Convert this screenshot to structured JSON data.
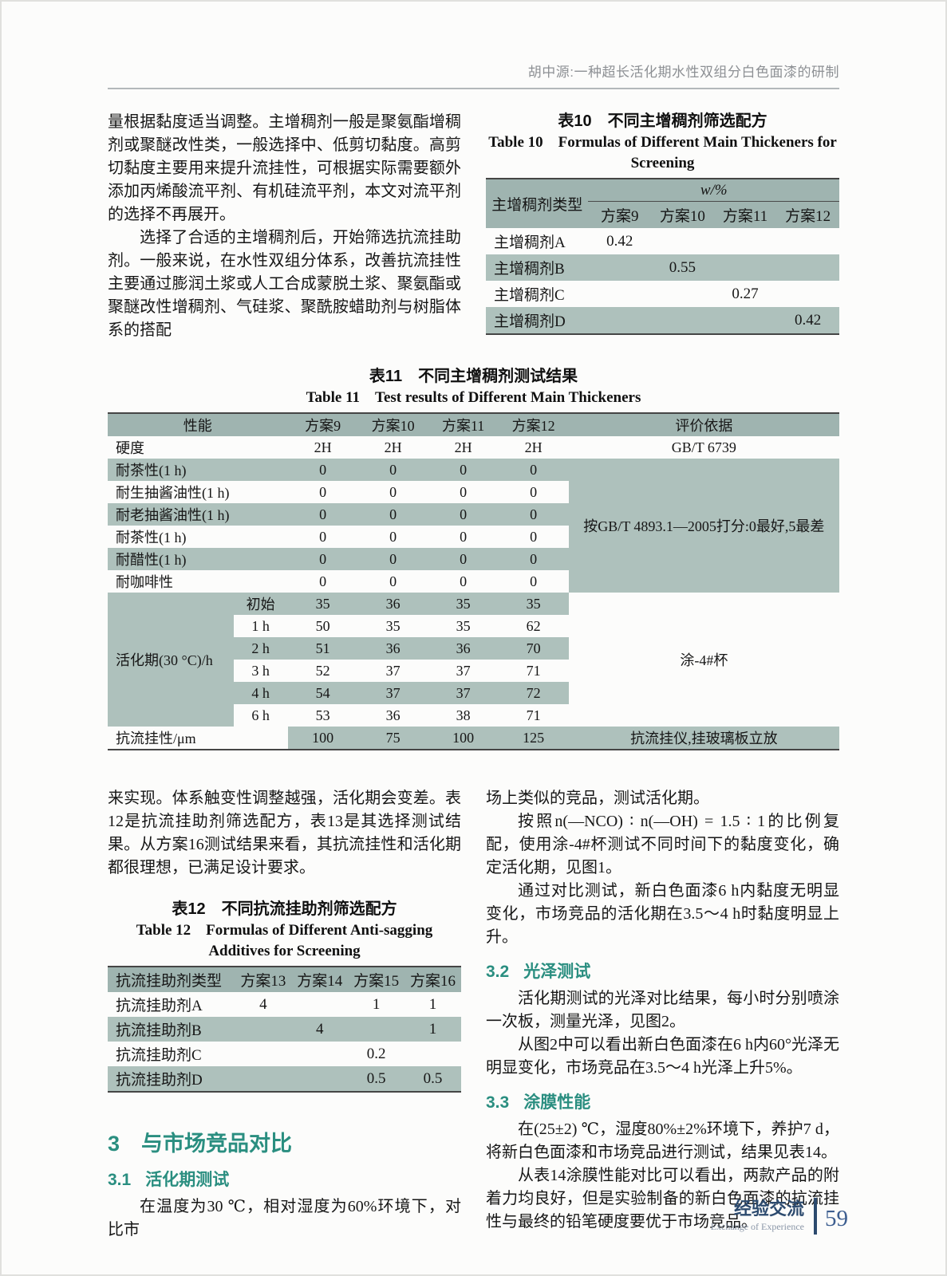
{
  "running_head": "胡中源:一种超长活化期水性双组分白色面漆的研制",
  "colors": {
    "accent_teal": "#2a8e80",
    "table_header_teal": "#9fb4b0",
    "table_band_teal": "#aec1bc",
    "footer_navy": "#2c4a6e",
    "page_number_blue": "#3d5e90",
    "running_head_gray": "#8d9094"
  },
  "top_left": {
    "p1": "量根据黏度适当调整。主增稠剂一般是聚氨酯增稠剂或聚醚改性类，一般选择中、低剪切黏度。高剪切黏度主要用来提升流挂性，可根据实际需要额外添加丙烯酸流平剂、有机硅流平剂，本文对流平剂的选择不再展开。",
    "p2": "选择了合适的主增稠剂后，开始筛选抗流挂助剂。一般来说，在水性双组分体系，改善抗流挂性主要通过膨润土浆或人工合成蒙脱土浆、聚氨酯或聚醚改性增稠剂、气硅浆、聚酰胺蜡助剂与树脂体系的搭配"
  },
  "tables": {
    "table10": {
      "title_zh": "表10　不同主增稠剂筛选配方",
      "title_en": "Table 10　Formulas of Different Main Thickeners for Screening",
      "widths": [
        "29%",
        "17.75%",
        "17.75%",
        "17.75%",
        "17.75%"
      ],
      "grid": [
        {
          "bg": "h",
          "c": [
            {
              "t": "主增稠剂类型",
              "rs": 2
            },
            {
              "t": "w/%",
              "cs": 4,
              "cls": "sp"
            }
          ]
        },
        {
          "bg": "h",
          "c": [
            {
              "t": "方案9"
            },
            {
              "t": "方案10"
            },
            {
              "t": "方案11"
            },
            {
              "t": "方案12"
            }
          ]
        },
        {
          "c": [
            {
              "t": "主增稠剂A",
              "al": "l"
            },
            {
              "t": "0.42"
            },
            {},
            {},
            {}
          ]
        },
        {
          "bg": "t",
          "c": [
            {
              "t": "主增稠剂B",
              "al": "l"
            },
            {},
            {
              "t": "0.55"
            },
            {},
            {}
          ]
        },
        {
          "c": [
            {
              "t": "主增稠剂C",
              "al": "l"
            },
            {},
            {},
            {
              "t": "0.27"
            },
            {}
          ]
        },
        {
          "bg": "t",
          "c": [
            {
              "t": "主增稠剂D",
              "al": "l"
            },
            {},
            {},
            {},
            {
              "t": "0.42"
            }
          ]
        }
      ]
    },
    "table11": {
      "title_zh": "表11　不同主增稠剂测试结果",
      "title_en": "Table 11　Test results of Different Main Thickeners",
      "widths": [
        "17.2%",
        "7.4%",
        "9.6%",
        "9.6%",
        "9.6%",
        "9.6%",
        "37%"
      ],
      "grid": [
        {
          "bg": "h",
          "c": [
            {
              "t": "性能",
              "cs": 2
            },
            {
              "t": "方案9"
            },
            {
              "t": "方案10"
            },
            {
              "t": "方案11"
            },
            {
              "t": "方案12"
            },
            {
              "t": "评价依据"
            }
          ]
        },
        {
          "c": [
            {
              "t": "硬度",
              "cs": 2,
              "al": "l"
            },
            {
              "t": "2H"
            },
            {
              "t": "2H"
            },
            {
              "t": "2H"
            },
            {
              "t": "2H"
            },
            {
              "t": "GB/T 6739"
            }
          ]
        },
        {
          "bg": "t",
          "c": [
            {
              "t": "耐茶性(1 h)",
              "cs": 2,
              "al": "l"
            },
            {
              "t": "0"
            },
            {
              "t": "0"
            },
            {
              "t": "0"
            },
            {
              "t": "0"
            },
            {
              "t": "按GB/T 4893.1—2005打分:0最好,5最差",
              "rs": 6,
              "bg": "t",
              "cls": "sm"
            }
          ]
        },
        {
          "c": [
            {
              "t": "耐生抽酱油性(1 h)",
              "cs": 2,
              "al": "l"
            },
            {
              "t": "0"
            },
            {
              "t": "0"
            },
            {
              "t": "0"
            },
            {
              "t": "0"
            }
          ]
        },
        {
          "bg": "t",
          "c": [
            {
              "t": "耐老抽酱油性(1 h)",
              "cs": 2,
              "al": "l"
            },
            {
              "t": "0"
            },
            {
              "t": "0"
            },
            {
              "t": "0"
            },
            {
              "t": "0"
            }
          ]
        },
        {
          "c": [
            {
              "t": "耐茶性(1 h)",
              "cs": 2,
              "al": "l"
            },
            {
              "t": "0"
            },
            {
              "t": "0"
            },
            {
              "t": "0"
            },
            {
              "t": "0"
            }
          ]
        },
        {
          "bg": "t",
          "c": [
            {
              "t": "耐醋性(1 h)",
              "cs": 2,
              "al": "l"
            },
            {
              "t": "0"
            },
            {
              "t": "0"
            },
            {
              "t": "0"
            },
            {
              "t": "0"
            }
          ]
        },
        {
          "c": [
            {
              "t": "耐咖啡性",
              "cs": 2,
              "al": "l"
            },
            {
              "t": "0"
            },
            {
              "t": "0"
            },
            {
              "t": "0"
            },
            {
              "t": "0"
            }
          ]
        },
        {
          "bg": "t",
          "c": [
            {
              "t": "活化期(30 °C)/h",
              "rs": 6,
              "bg": "t",
              "al": "l"
            },
            {
              "t": "初始"
            },
            {
              "t": "35"
            },
            {
              "t": "36"
            },
            {
              "t": "35"
            },
            {
              "t": "35"
            },
            {
              "t": "涂-4#杯",
              "rs": 6,
              "bg": "w"
            }
          ]
        },
        {
          "c": [
            {
              "t": "1 h"
            },
            {
              "t": "50"
            },
            {
              "t": "35"
            },
            {
              "t": "35"
            },
            {
              "t": "62"
            }
          ]
        },
        {
          "bg": "t",
          "c": [
            {
              "t": "2 h"
            },
            {
              "t": "51"
            },
            {
              "t": "36"
            },
            {
              "t": "36"
            },
            {
              "t": "70"
            }
          ]
        },
        {
          "c": [
            {
              "t": "3 h"
            },
            {
              "t": "52"
            },
            {
              "t": "37"
            },
            {
              "t": "37"
            },
            {
              "t": "71"
            }
          ]
        },
        {
          "bg": "t",
          "c": [
            {
              "t": "4 h"
            },
            {
              "t": "54"
            },
            {
              "t": "37"
            },
            {
              "t": "37"
            },
            {
              "t": "72"
            }
          ]
        },
        {
          "c": [
            {
              "t": "6 h"
            },
            {
              "t": "53"
            },
            {
              "t": "36"
            },
            {
              "t": "38"
            },
            {
              "t": "71"
            }
          ]
        },
        {
          "c": [
            {
              "t": "抗流挂性/μm",
              "cs": 2,
              "al": "l"
            },
            {
              "t": "100",
              "bg": "t"
            },
            {
              "t": "75",
              "bg": "t"
            },
            {
              "t": "100",
              "bg": "t"
            },
            {
              "t": "125",
              "bg": "t"
            },
            {
              "t": "抗流挂仪,挂玻璃板立放",
              "bg": "t"
            }
          ]
        }
      ]
    },
    "table12": {
      "title_zh": "表12　不同抗流挂助剂筛选配方",
      "title_en": "Table 12　Formulas of Different Anti-sagging Additives for Screening",
      "widths": [
        "36%",
        "16%",
        "16%",
        "16%",
        "16%"
      ],
      "grid": [
        {
          "bg": "h",
          "c": [
            {
              "t": "抗流挂助剂类型",
              "al": "l"
            },
            {
              "t": "方案13"
            },
            {
              "t": "方案14"
            },
            {
              "t": "方案15"
            },
            {
              "t": "方案16"
            }
          ]
        },
        {
          "c": [
            {
              "t": "抗流挂助剂A",
              "al": "l"
            },
            {
              "t": "4"
            },
            {},
            {
              "t": "1"
            },
            {
              "t": "1"
            }
          ]
        },
        {
          "bg": "t",
          "c": [
            {
              "t": "抗流挂助剂B",
              "al": "l"
            },
            {},
            {
              "t": "4"
            },
            {},
            {
              "t": "1"
            }
          ]
        },
        {
          "c": [
            {
              "t": "抗流挂助剂C",
              "al": "l"
            },
            {},
            {},
            {
              "t": "0.2"
            },
            {}
          ]
        },
        {
          "bg": "t",
          "c": [
            {
              "t": "抗流挂助剂D",
              "al": "l"
            },
            {},
            {},
            {
              "t": "0.5"
            },
            {
              "t": "0.5"
            }
          ]
        }
      ]
    }
  },
  "bottom_left": {
    "p1": "来实现。体系触变性调整越强，活化期会变差。表12是抗流挂助剂筛选配方，表13是其选择测试结果。从方案16测试结果来看，其抗流挂性和活化期都很理想，已满足设计要求。",
    "sec3_num": "3",
    "sec3_label": "与市场竞品对比",
    "sec31_num": "3.1",
    "sec31_label": "活化期测试",
    "p2": "在温度为30 ℃，相对湿度为60%环境下，对比市"
  },
  "bottom_right": {
    "p1": "场上类似的竞品，测试活化期。",
    "p2": "按照n(—NCO) ∶ n(—OH) = 1.5 ∶ 1的比例复配，使用涂-4#杯测试不同时间下的黏度变化，确定活化期，见图1。",
    "p3": "通过对比测试，新白色面漆6 h内黏度无明显变化，市场竞品的活化期在3.5～4 h时黏度明显上升。",
    "sec32_num": "3.2",
    "sec32_label": "光泽测试",
    "p4": "活化期测试的光泽对比结果，每小时分别喷涂一次板，测量光泽，见图2。",
    "p5": "从图2中可以看出新白色面漆在6 h内60°光泽无明显变化，市场竞品在3.5～4 h光泽上升5%。",
    "sec33_num": "3.3",
    "sec33_label": "涂膜性能",
    "p6": "在(25±2) ℃，湿度80%±2%环境下，养护7 d，将新白色面漆和市场竞品进行测试，结果见表14。",
    "p7": "从表14涂膜性能对比可以看出，两款产品的附着力均良好，但是实验制备的新白色面漆的抗流挂性与最终的铅笔硬度要优于市场竞品。"
  },
  "footer": {
    "zh": "经验交流",
    "en": "Exchange of Experience",
    "page": "59"
  }
}
